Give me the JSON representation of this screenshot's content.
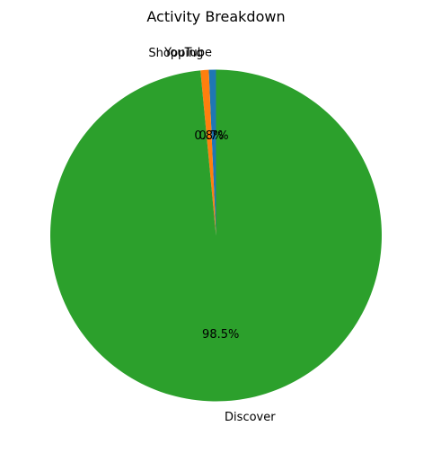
{
  "chart_data": {
    "type": "pie",
    "title": "Activity Breakdown",
    "categories": [
      "YouTube",
      "Shopping",
      "Discover"
    ],
    "values": [
      0.7,
      0.8,
      98.5
    ],
    "percent_labels": [
      "0.7%",
      "0.8%",
      "98.5%"
    ],
    "colors": [
      "#1f77b4",
      "#ff7f0e",
      "#2ca02c"
    ],
    "start_angle": "90 degrees (top), counter-clockwise",
    "legend": "none"
  }
}
